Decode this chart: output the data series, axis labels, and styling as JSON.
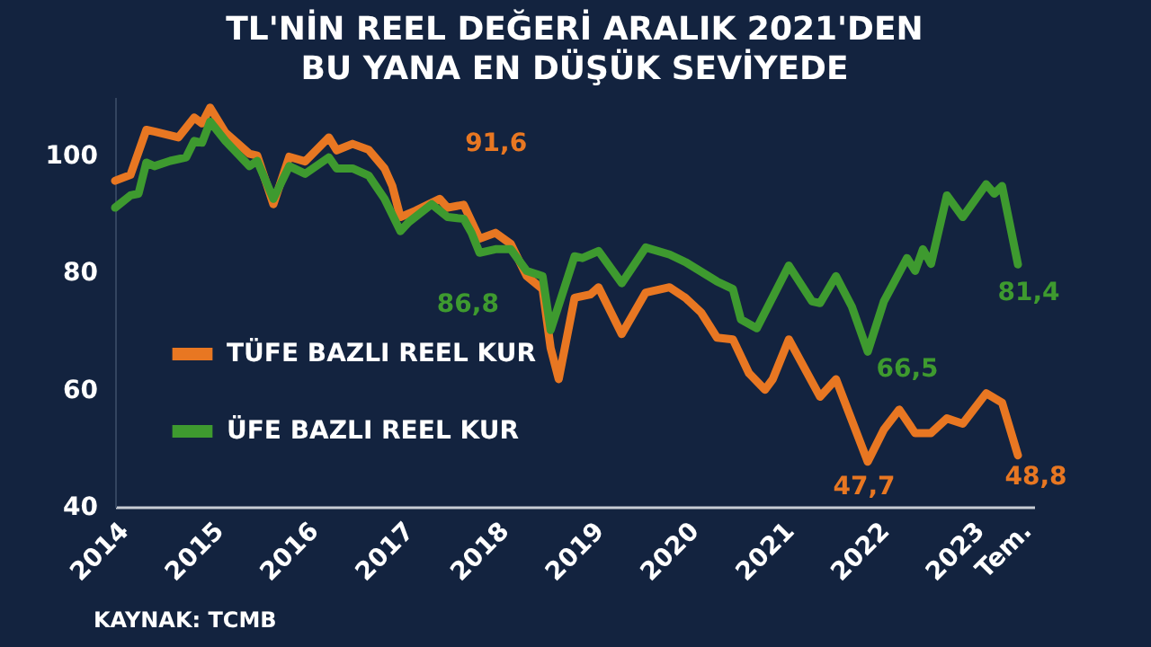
{
  "chart_data": {
    "type": "line",
    "title": "TL'NİN REEL DEĞERİ ARALIK 2021'DEN\nBU YANA EN DÜŞÜK SEVİYEDE",
    "series": [
      {
        "name": "TÜFE BAZLI REEL KUR",
        "color": "#e87722",
        "x": [
          "2014-01",
          "2014-03",
          "2014-05",
          "2014-06",
          "2014-09",
          "2014-11",
          "2014-12",
          "2015-01",
          "2015-03",
          "2015-06",
          "2015-07",
          "2015-09",
          "2015-11",
          "2016-01",
          "2016-04",
          "2016-05",
          "2016-07",
          "2016-09",
          "2016-11",
          "2016-12",
          "2017-01",
          "2017-03",
          "2017-06",
          "2017-07",
          "2017-09",
          "2017-11",
          "2018-01",
          "2018-03",
          "2018-05",
          "2018-07",
          "2018-08",
          "2018-09",
          "2018-11",
          "2019-01",
          "2019-02",
          "2019-05",
          "2019-08",
          "2019-11",
          "2020-01",
          "2020-03",
          "2020-05",
          "2020-07",
          "2020-09",
          "2020-11",
          "2020-12",
          "2021-02",
          "2021-06",
          "2021-08",
          "2021-12",
          "2022-02",
          "2022-04",
          "2022-06",
          "2022-08",
          "2022-10",
          "2022-12",
          "2023-03",
          "2023-05",
          "2023-07"
        ],
        "values": [
          95.7,
          96.7,
          104.4,
          104.1,
          103.1,
          106.5,
          105.5,
          108.2,
          103.9,
          100.3,
          100,
          91.7,
          99.8,
          99,
          103.1,
          100.9,
          102,
          101,
          97.8,
          94.8,
          89.5,
          90.6,
          92.6,
          91.1,
          91.6,
          85.8,
          86.8,
          84.9,
          79.4,
          77.2,
          67.1,
          61.8,
          75.7,
          76.3,
          77.5,
          69.5,
          76.6,
          77.5,
          75.7,
          73.2,
          68.9,
          68.6,
          62.8,
          60,
          61.8,
          68.6,
          58.8,
          61.8,
          47.7,
          53.2,
          56.6,
          52.6,
          52.6,
          55.1,
          54.2,
          59.4,
          57.8,
          48.8
        ]
      },
      {
        "name": "ÜFE BAZLI REEL KUR",
        "color": "#3e9a2f",
        "x": [
          "2014-01",
          "2014-03",
          "2014-04",
          "2014-05",
          "2014-06",
          "2014-08",
          "2014-10",
          "2014-11",
          "2014-12",
          "2015-01",
          "2015-03",
          "2015-06",
          "2015-07",
          "2015-09",
          "2015-11",
          "2016-01",
          "2016-04",
          "2016-05",
          "2016-07",
          "2016-09",
          "2016-11",
          "2017-01",
          "2017-02",
          "2017-05",
          "2017-07",
          "2017-09",
          "2017-10",
          "2017-11",
          "2018-01",
          "2018-03",
          "2018-05",
          "2018-07",
          "2018-08",
          "2018-11",
          "2018-12",
          "2019-02",
          "2019-05",
          "2019-08",
          "2019-11",
          "2020-01",
          "2020-05",
          "2020-07",
          "2020-08",
          "2020-10",
          "2021-02",
          "2021-05",
          "2021-06",
          "2021-08",
          "2021-10",
          "2021-12",
          "2022-02",
          "2022-05",
          "2022-06",
          "2022-07",
          "2022-08",
          "2022-10",
          "2022-12",
          "2023-03",
          "2023-04",
          "2023-05",
          "2023-07"
        ],
        "values": [
          91.1,
          93.2,
          93.5,
          98.8,
          98.2,
          99.1,
          99.7,
          102.5,
          102.2,
          105.8,
          102.5,
          98.2,
          99.1,
          92.6,
          98.2,
          96.9,
          99.7,
          97.8,
          97.8,
          96.6,
          92.6,
          87.1,
          88.6,
          91.7,
          89.5,
          89.2,
          86.8,
          83.4,
          84,
          84,
          80.3,
          79.4,
          70.2,
          82.8,
          82.5,
          83.7,
          78.2,
          84.3,
          83.1,
          81.8,
          78.5,
          77.2,
          72,
          70.5,
          81.2,
          75.1,
          74.8,
          79.4,
          74.2,
          66.5,
          75.1,
          82.5,
          80.3,
          84,
          81.5,
          93.2,
          89.5,
          95.1,
          93.5,
          94.8,
          81.4
        ]
      }
    ],
    "xlim": [
      "2014-01",
      "2023-09"
    ],
    "xticks": [
      {
        "value": "2014-01",
        "label": "2014"
      },
      {
        "value": "2015-01",
        "label": "2015"
      },
      {
        "value": "2016-01",
        "label": "2016"
      },
      {
        "value": "2017-01",
        "label": "2017"
      },
      {
        "value": "2018-01",
        "label": "2018"
      },
      {
        "value": "2019-01",
        "label": "2019"
      },
      {
        "value": "2020-01",
        "label": "2020"
      },
      {
        "value": "2021-01",
        "label": "2021"
      },
      {
        "value": "2022-01",
        "label": "2022"
      },
      {
        "value": "2023-01",
        "label": "2023"
      },
      {
        "value": "2023-07",
        "label": "Tem."
      }
    ],
    "ylim": [
      40,
      110
    ],
    "yticks": [
      40,
      60,
      80,
      100
    ],
    "grid": false,
    "legend": "bottom left",
    "marker": "none",
    "line_style": "solid",
    "annotations": [
      {
        "text": "91,6",
        "x": "2017-09",
        "y": 91.6
      },
      {
        "text": "86,8",
        "x": "2017-10",
        "y": 86.8
      },
      {
        "text": "66,5",
        "x": "2021-12",
        "y": 66.5
      },
      {
        "text": "47,7",
        "x": "2021-12",
        "y": 47.7
      },
      {
        "text": "81,4",
        "x": "2023-07",
        "y": 81.4
      },
      {
        "text": "48,8",
        "x": "2023-07",
        "y": 48.8
      },
      "KAYNAK: TCMB"
    ]
  }
}
